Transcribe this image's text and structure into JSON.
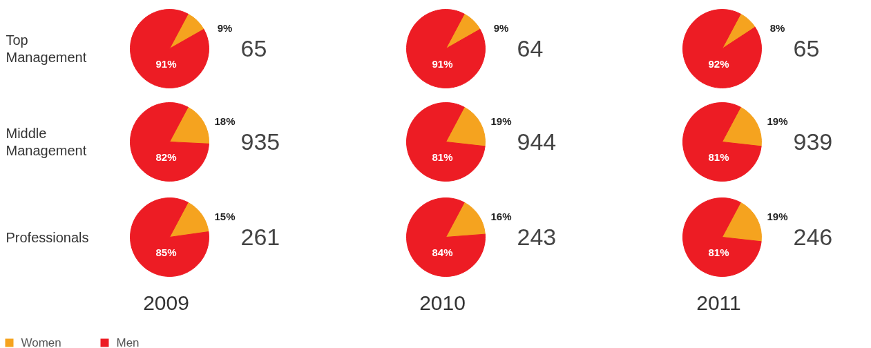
{
  "chart_data": [
    {
      "type": "pie",
      "ylabel": "Top Management",
      "legend": "bottom",
      "categories": [
        "Women",
        "Men"
      ],
      "values": [
        9,
        91
      ],
      "value_labels": [
        "9%",
        "91%"
      ],
      "colors": [
        "#f5a31f",
        "#ed1c24"
      ],
      "annotations": [
        "65"
      ]
    },
    {
      "type": "pie",
      "categories": [
        null,
        null
      ],
      "values": [
        9,
        91
      ],
      "value_labels": [
        "9%",
        "91%"
      ],
      "colors": [
        "#f5a31f",
        "#ed1c24"
      ],
      "annotations": [
        "64"
      ]
    },
    {
      "type": "pie",
      "categories": [
        null,
        null
      ],
      "values": [
        8,
        92
      ],
      "value_labels": [
        "8%",
        "92%"
      ],
      "colors": [
        "#f5a31f",
        "#ed1c24"
      ],
      "annotations": [
        "65"
      ]
    },
    {
      "type": "pie",
      "ylabel": "Middle Management",
      "categories": [
        null,
        null
      ],
      "values": [
        18,
        82
      ],
      "value_labels": [
        "18%",
        "82%"
      ],
      "colors": [
        "#f5a31f",
        "#ed1c24"
      ],
      "annotations": [
        "935"
      ]
    },
    {
      "type": "pie",
      "categories": [
        null,
        null
      ],
      "values": [
        19,
        81
      ],
      "value_labels": [
        "19%",
        "81%"
      ],
      "colors": [
        "#f5a31f",
        "#ed1c24"
      ],
      "annotations": [
        "944"
      ]
    },
    {
      "type": "pie",
      "categories": [
        null,
        null
      ],
      "values": [
        19,
        81
      ],
      "value_labels": [
        "19%",
        "81%"
      ],
      "colors": [
        "#f5a31f",
        "#ed1c24"
      ],
      "annotations": [
        "939"
      ]
    },
    {
      "type": "pie",
      "ylabel": "Professionals",
      "xlabel": "2009",
      "categories": [
        null,
        null
      ],
      "values": [
        15,
        85
      ],
      "value_labels": [
        "15%",
        "85%"
      ],
      "colors": [
        "#f5a31f",
        "#ed1c24"
      ],
      "annotations": [
        "261"
      ]
    },
    {
      "type": "pie",
      "xlabel": "2010",
      "categories": [
        null,
        null
      ],
      "values": [
        16,
        84
      ],
      "value_labels": [
        "16%",
        "84%"
      ],
      "colors": [
        "#f5a31f",
        "#ed1c24"
      ],
      "annotations": [
        "243"
      ]
    },
    {
      "type": "pie",
      "xlabel": "2011",
      "categories": [
        null,
        null
      ],
      "values": [
        19,
        81
      ],
      "value_labels": [
        "19%",
        "81%"
      ],
      "colors": [
        "#f5a31f",
        "#ed1c24"
      ],
      "annotations": [
        "246"
      ]
    }
  ]
}
